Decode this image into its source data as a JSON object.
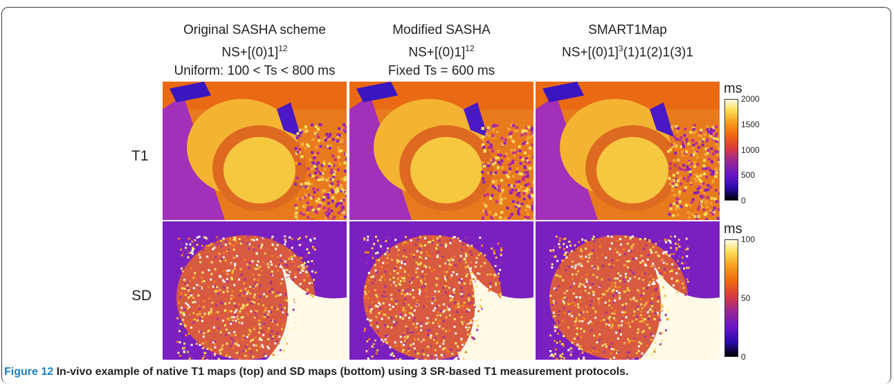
{
  "columns": [
    {
      "lines": [
        {
          "segments": [
            {
              "text": "Original SASHA scheme"
            }
          ]
        },
        {
          "segments": [
            {
              "text": "NS+[(0)1]"
            },
            {
              "sup": "12"
            }
          ]
        },
        {
          "segments": [
            {
              "text": "Uniform: 100 < Ts < 800 ms"
            }
          ]
        }
      ]
    },
    {
      "lines": [
        {
          "segments": [
            {
              "text": "Modified SASHA"
            }
          ]
        },
        {
          "segments": [
            {
              "text": "NS+[(0)1]"
            },
            {
              "sup": "12"
            }
          ]
        },
        {
          "segments": [
            {
              "text": "Fixed Ts  = 600 ms"
            }
          ]
        }
      ]
    },
    {
      "lines": [
        {
          "segments": [
            {
              "text": "SMART1Map"
            }
          ]
        },
        {
          "segments": [
            {
              "text": "NS+[(0)1]"
            },
            {
              "sup": "3"
            },
            {
              "text": "(1)1(2)1(3)1"
            }
          ]
        }
      ]
    }
  ],
  "rows": [
    "T1",
    "SD"
  ],
  "colorbars": [
    {
      "unit": "ms",
      "ticks": [
        2000,
        1500,
        1000,
        500,
        0
      ]
    },
    {
      "unit": "ms",
      "ticks": [
        100,
        50,
        0
      ]
    }
  ],
  "caption": {
    "label": "Figure 12",
    "text": "In-vivo example of native T1 maps (top) and SD maps (bottom) using 3 SR-based T1 measurement protocols."
  }
}
